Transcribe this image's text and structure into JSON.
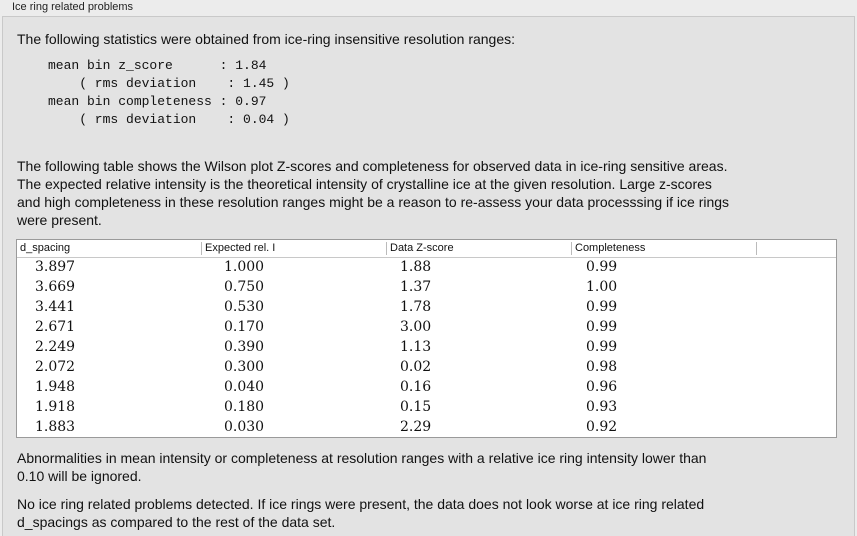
{
  "header": {
    "title": "Ice ring related problems"
  },
  "intro": "The following statistics were obtained from ice-ring insensitive resolution ranges:",
  "stats": [
    "mean bin z_score      : 1.84",
    "    ( rms deviation    : 1.45 )",
    "mean bin completeness : 0.97",
    "    ( rms deviation    : 0.04 )"
  ],
  "explanation": [
    "The following table shows the Wilson plot Z-scores and completeness for observed data in ice-ring sensitive areas.",
    "The expected relative intensity is the theoretical intensity of crystalline ice at the given resolution. Large z-scores",
    "and high completeness in these resolution ranges might be a reason to re-assess your data processsing if ice rings",
    "were present."
  ],
  "table": {
    "columns": [
      "d_spacing",
      "Expected rel. I",
      "Data Z-score",
      "Completeness"
    ],
    "rows": [
      [
        "3.897",
        "1.000",
        "1.88",
        "0.99"
      ],
      [
        "3.669",
        "0.750",
        "1.37",
        "1.00"
      ],
      [
        "3.441",
        "0.530",
        "1.78",
        "0.99"
      ],
      [
        "2.671",
        "0.170",
        "3.00",
        "0.99"
      ],
      [
        "2.249",
        "0.390",
        "1.13",
        "0.99"
      ],
      [
        "2.072",
        "0.300",
        "0.02",
        "0.98"
      ],
      [
        "1.948",
        "0.040",
        "0.16",
        "0.96"
      ],
      [
        "1.918",
        "0.180",
        "0.15",
        "0.93"
      ],
      [
        "1.883",
        "0.030",
        "2.29",
        "0.92"
      ]
    ]
  },
  "note": [
    "Abnormalities in mean intensity or completeness at resolution ranges with a relative ice ring intensity lower than",
    "0.10 will be ignored."
  ],
  "conclusion": [
    "No ice ring related problems detected. If ice rings were present, the data does not look worse at ice ring related",
    "d_spacings as compared to the rest of the data set."
  ]
}
